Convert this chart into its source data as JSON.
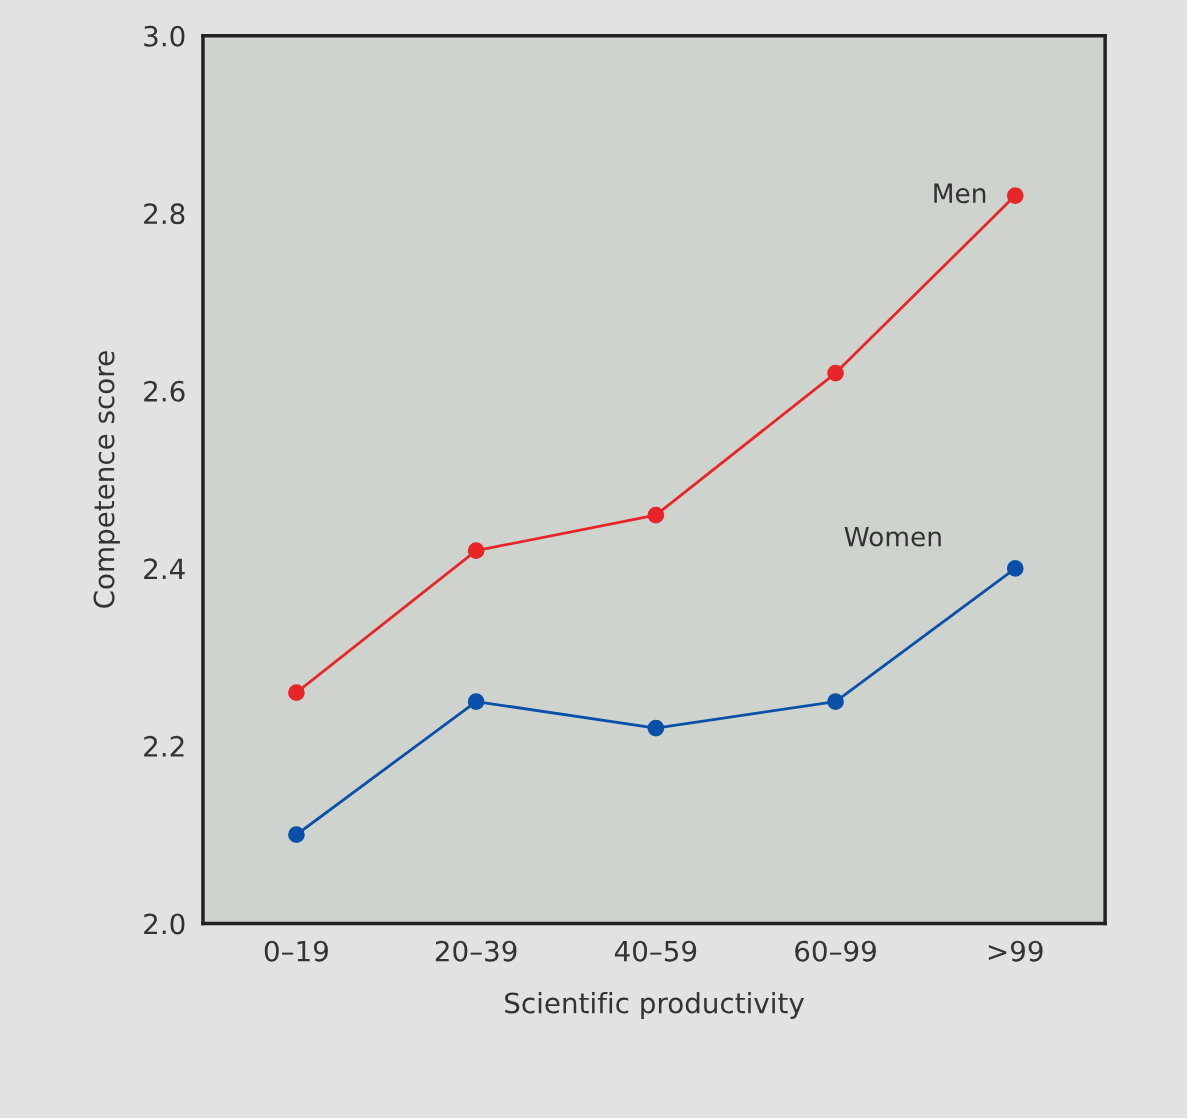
{
  "chart_data": {
    "type": "line",
    "xlabel": "Scientific productivity",
    "ylabel": "Competence score",
    "categories": [
      "0–19",
      "20–39",
      "40–59",
      "60–99",
      ">99"
    ],
    "series": [
      {
        "name": "Men",
        "color": "#e8262a",
        "values": [
          2.26,
          2.42,
          2.46,
          2.62,
          2.82
        ]
      },
      {
        "name": "Women",
        "color": "#0a50a8",
        "values": [
          2.1,
          2.25,
          2.22,
          2.25,
          2.4
        ]
      }
    ],
    "ylim": [
      2.0,
      3.0
    ],
    "yticks": [
      {
        "value": 2.0,
        "label": "2.0"
      },
      2.2,
      2.4,
      2.6,
      2.8,
      {
        "value": 3.0,
        "label": "3.0"
      }
    ],
    "marker": "circle",
    "line_style": "solid",
    "grid": false,
    "legend": false
  }
}
